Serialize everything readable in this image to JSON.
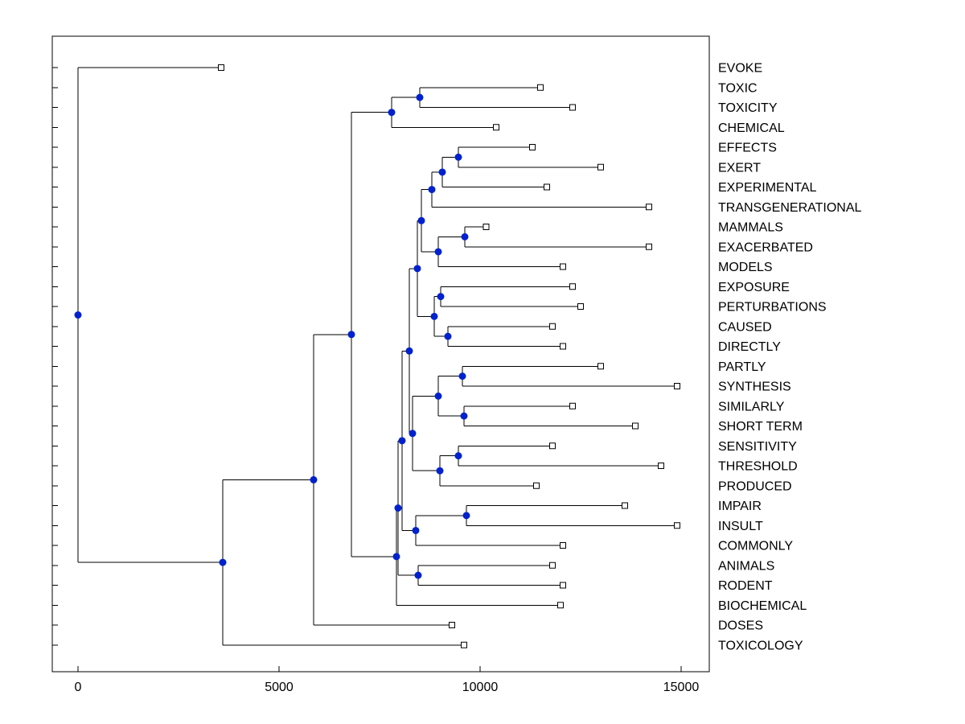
{
  "figure": {
    "background": "#ffffff",
    "axis_color": "#000000",
    "line_color": "#000000",
    "node_marker_color": "#0022cc",
    "leaf_marker_fill": "#ffffff",
    "leaf_marker_border": "#000000"
  },
  "chart_data": {
    "type": "dendrogram",
    "orientation": "root-left-leaves-right",
    "title": "",
    "xlabel": "",
    "ylabel": "",
    "grid": false,
    "xlim": [
      -640,
      15700
    ],
    "x_ticks": [
      0,
      5000,
      10000,
      15000
    ],
    "x_tick_labels": [
      "0",
      "5000",
      "10000",
      "15000"
    ],
    "leaves": [
      {
        "label": "EVOKE",
        "value": 3560
      },
      {
        "label": "TOXIC",
        "value": 11500
      },
      {
        "label": "TOXICITY",
        "value": 12300
      },
      {
        "label": "CHEMICAL",
        "value": 10400
      },
      {
        "label": "EFFECTS",
        "value": 11300
      },
      {
        "label": "EXERT",
        "value": 13000
      },
      {
        "label": "EXPERIMENTAL",
        "value": 11660
      },
      {
        "label": "TRANSGENERATIONAL",
        "value": 14200
      },
      {
        "label": "MAMMALS",
        "value": 10150
      },
      {
        "label": "EXACERBATED",
        "value": 14200
      },
      {
        "label": "MODELS",
        "value": 12060
      },
      {
        "label": "EXPOSURE",
        "value": 12300
      },
      {
        "label": "PERTURBATIONS",
        "value": 12500
      },
      {
        "label": "CAUSED",
        "value": 11800
      },
      {
        "label": "DIRECTLY",
        "value": 12060
      },
      {
        "label": "PARTLY",
        "value": 13000
      },
      {
        "label": "SYNTHESIS",
        "value": 14900
      },
      {
        "label": "SIMILARLY",
        "value": 12300
      },
      {
        "label": "SHORT TERM",
        "value": 13860
      },
      {
        "label": "SENSITIVITY",
        "value": 11800
      },
      {
        "label": "THRESHOLD",
        "value": 14500
      },
      {
        "label": "PRODUCED",
        "value": 11400
      },
      {
        "label": "IMPAIR",
        "value": 13600
      },
      {
        "label": "INSULT",
        "value": 14900
      },
      {
        "label": "COMMONLY",
        "value": 12060
      },
      {
        "label": "ANIMALS",
        "value": 11800
      },
      {
        "label": "RODENT",
        "value": 12060
      },
      {
        "label": "BIOCHEMICAL",
        "value": 12000
      },
      {
        "label": "DOSES",
        "value": 9300
      },
      {
        "label": "TOXICOLOGY",
        "value": 9600
      }
    ],
    "merges": [
      {
        "id": "n1",
        "children": [
          "TOXIC",
          "TOXICITY"
        ],
        "value": 8500
      },
      {
        "id": "n2",
        "children": [
          "n1",
          "CHEMICAL"
        ],
        "value": 7800
      },
      {
        "id": "n3",
        "children": [
          "EFFECTS",
          "EXERT"
        ],
        "value": 9460
      },
      {
        "id": "n4",
        "children": [
          "n3",
          "EXPERIMENTAL"
        ],
        "value": 9060
      },
      {
        "id": "n5",
        "children": [
          "n4",
          "TRANSGENERATIONAL"
        ],
        "value": 8800
      },
      {
        "id": "n6",
        "children": [
          "MAMMALS",
          "EXACERBATED"
        ],
        "value": 9620
      },
      {
        "id": "n7",
        "children": [
          "n6",
          "MODELS"
        ],
        "value": 8960
      },
      {
        "id": "n8",
        "children": [
          "n5",
          "n7"
        ],
        "value": 8540
      },
      {
        "id": "n9",
        "children": [
          "EXPOSURE",
          "PERTURBATIONS"
        ],
        "value": 9020
      },
      {
        "id": "n10",
        "children": [
          "CAUSED",
          "DIRECTLY"
        ],
        "value": 9200
      },
      {
        "id": "n11",
        "children": [
          "n9",
          "n10"
        ],
        "value": 8860
      },
      {
        "id": "n12",
        "children": [
          "n8",
          "n11"
        ],
        "value": 8440
      },
      {
        "id": "n13",
        "children": [
          "PARTLY",
          "SYNTHESIS"
        ],
        "value": 9560
      },
      {
        "id": "n14",
        "children": [
          "SIMILARLY",
          "SHORT TERM"
        ],
        "value": 9600
      },
      {
        "id": "n15",
        "children": [
          "n13",
          "n14"
        ],
        "value": 8960
      },
      {
        "id": "n16",
        "children": [
          "SENSITIVITY",
          "THRESHOLD"
        ],
        "value": 9460
      },
      {
        "id": "n17",
        "children": [
          "n16",
          "PRODUCED"
        ],
        "value": 9000
      },
      {
        "id": "n18",
        "children": [
          "n15",
          "n17"
        ],
        "value": 8320
      },
      {
        "id": "n19",
        "children": [
          "n12",
          "n18"
        ],
        "value": 8240
      },
      {
        "id": "n20",
        "children": [
          "IMPAIR",
          "INSULT"
        ],
        "value": 9660
      },
      {
        "id": "n21",
        "children": [
          "n20",
          "COMMONLY"
        ],
        "value": 8400
      },
      {
        "id": "n22",
        "children": [
          "ANIMALS",
          "RODENT"
        ],
        "value": 8460
      },
      {
        "id": "n23",
        "children": [
          "n19",
          "n21"
        ],
        "value": 8060
      },
      {
        "id": "n24",
        "children": [
          "n23",
          "n22"
        ],
        "value": 7960
      },
      {
        "id": "n25",
        "children": [
          "n24",
          "BIOCHEMICAL"
        ],
        "value": 7920
      },
      {
        "id": "n26",
        "children": [
          "n2",
          "n25"
        ],
        "value": 6800
      },
      {
        "id": "n27",
        "children": [
          "n26",
          "DOSES"
        ],
        "value": 5860
      },
      {
        "id": "n28",
        "children": [
          "n27",
          "TOXICOLOGY"
        ],
        "value": 3600
      },
      {
        "id": "root",
        "children": [
          "EVOKE",
          "n28"
        ],
        "value": 0
      }
    ]
  }
}
